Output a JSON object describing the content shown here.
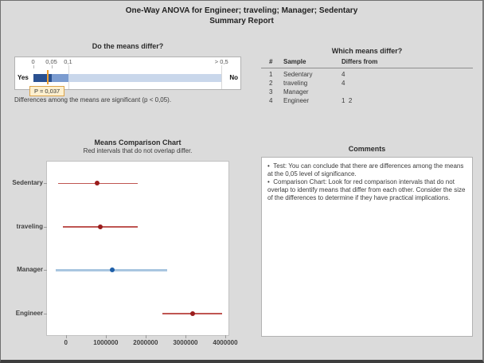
{
  "title": {
    "line1": "One-Way ANOVA for Engineer; traveling; Manager; Sedentary",
    "line2": "Summary Report"
  },
  "significance_panel": {
    "title": "Do the means differ?",
    "scale_ticks": [
      "0",
      "0,05",
      "0,1",
      "> 0,5"
    ],
    "yes_label": "Yes",
    "no_label": "No",
    "p_value": 0.037,
    "p_label": "P = 0,037",
    "footnote": "Differences among the means are significant (p < 0,05).",
    "colors": {
      "segment_low": "#2a5191",
      "segment_mid": "#7b9cd0",
      "segment_high": "#c9d7eb",
      "marker": "#f0a030",
      "p_box_bg": "#fdf0cf",
      "p_box_border": "#dca349"
    }
  },
  "differ_table": {
    "title": "Which means differ?",
    "columns": [
      "#",
      "Sample",
      "Differs from"
    ],
    "rows": [
      {
        "num": "1",
        "sample": "Sedentary",
        "differs": "4"
      },
      {
        "num": "2",
        "sample": "traveling",
        "differs": "4"
      },
      {
        "num": "3",
        "sample": "Manager",
        "differs": ""
      },
      {
        "num": "4",
        "sample": "Engineer",
        "differs": "1  2"
      }
    ]
  },
  "chart_data": {
    "type": "interval",
    "title": "Means Comparison Chart",
    "subtitle": "Red intervals that do not overlap differ.",
    "categories": [
      "Sedentary",
      "traveling",
      "Manager",
      "Engineer"
    ],
    "intervals": [
      {
        "sample": "Sedentary",
        "low": -200000,
        "mean": 780000,
        "high": 1800000,
        "color": "red"
      },
      {
        "sample": "traveling",
        "low": -80000,
        "mean": 860000,
        "high": 1800000,
        "color": "red"
      },
      {
        "sample": "Manager",
        "low": -260000,
        "mean": 1160000,
        "high": 2540000,
        "color": "blue"
      },
      {
        "sample": "Engineer",
        "low": 2420000,
        "mean": 3180000,
        "high": 3920000,
        "color": "red"
      }
    ],
    "x_ticks": [
      0,
      1000000,
      2000000,
      3000000,
      4000000
    ],
    "x_tick_labels": [
      "0",
      "1000000",
      "2000000",
      "3000000",
      "4000000"
    ],
    "xlim": [
      -475000,
      4080000
    ],
    "grid": false,
    "colors": {
      "red_line": "#bf5552",
      "red_dot": "#9a1c1c",
      "blue_line": "#a9c6e0",
      "blue_dot": "#1e5fa8"
    }
  },
  "comments": {
    "title": "Comments",
    "bullets": [
      "Test: You can conclude that there are differences among the means at the 0,05 level of significance.",
      "Comparison Chart: Look for red comparison intervals that do not overlap to identify means that differ from each other. Consider the size of the differences to determine if they have practical implications."
    ]
  }
}
